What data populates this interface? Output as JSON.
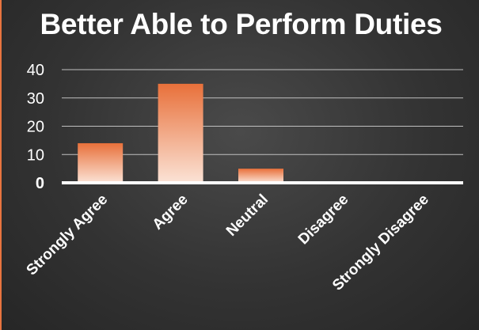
{
  "chart_data": {
    "type": "bar",
    "title": "Better Able to Perform Duties",
    "categories": [
      "Strongly Agree",
      "Agree",
      "Neutral",
      "Disagree",
      "Strongly Disagree"
    ],
    "values": [
      14,
      35,
      5,
      0,
      0
    ],
    "y_ticks": [
      "0",
      "10",
      "20",
      "30",
      "40"
    ],
    "ylim": [
      0,
      40
    ],
    "grid": true,
    "legend": "none"
  },
  "colors": {
    "bar_top": "#e8703a",
    "bar_bottom": "#fbe3d6",
    "gridline": "#bfbfbf",
    "axis": "#ffffff",
    "text": "#ffffff"
  }
}
